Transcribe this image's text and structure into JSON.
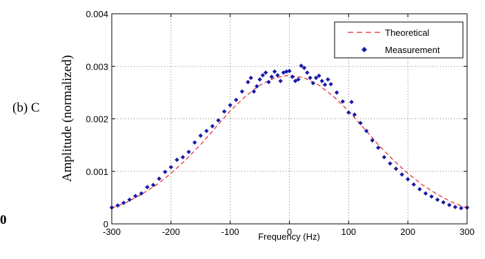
{
  "left_fragments": {
    "caption": "(b) C",
    "bottom": "0"
  },
  "chart_data": {
    "type": "line",
    "xlabel": "Frequency (Hz)",
    "ylabel": "Amplitude (normalized)",
    "xlim": [
      -300,
      300
    ],
    "ylim": [
      0,
      0.004
    ],
    "xticks": [
      -300,
      -200,
      -100,
      0,
      100,
      200,
      300
    ],
    "xtick_labels": [
      "-300",
      "-200",
      "-100",
      "0",
      "100",
      "200",
      "300"
    ],
    "yticks": [
      0,
      0.001,
      0.002,
      0.003,
      0.004
    ],
    "ytick_labels": [
      "0",
      "0.001",
      "0.002",
      "0.003",
      "0.004"
    ],
    "grid": true,
    "legend_position": "top-right",
    "series": [
      {
        "name": "Theoretical",
        "style": "dashed-line",
        "color": "#e0202a",
        "x": [
          -300,
          -275,
          -250,
          -225,
          -200,
          -175,
          -150,
          -125,
          -100,
          -75,
          -50,
          -25,
          0,
          25,
          50,
          75,
          100,
          125,
          150,
          175,
          200,
          225,
          250,
          275,
          300
        ],
        "y": [
          0.0003,
          0.00041,
          0.00056,
          0.00074,
          0.00096,
          0.00122,
          0.00151,
          0.00183,
          0.00215,
          0.00242,
          0.00264,
          0.00278,
          0.00283,
          0.00278,
          0.00264,
          0.00242,
          0.00215,
          0.00183,
          0.00151,
          0.00122,
          0.00096,
          0.00074,
          0.00056,
          0.00041,
          0.0003
        ]
      },
      {
        "name": "Measurement",
        "style": "diamond-markers",
        "color": "#1a1aa8",
        "x": [
          -300,
          -290,
          -280,
          -270,
          -260,
          -250,
          -240,
          -230,
          -220,
          -210,
          -200,
          -190,
          -180,
          -170,
          -160,
          -150,
          -140,
          -130,
          -120,
          -110,
          -100,
          -90,
          -80,
          -70,
          -65,
          -60,
          -55,
          -50,
          -45,
          -40,
          -35,
          -30,
          -25,
          -20,
          -15,
          -10,
          -5,
          0,
          5,
          10,
          15,
          20,
          25,
          30,
          35,
          40,
          45,
          50,
          55,
          60,
          65,
          70,
          80,
          90,
          100,
          105,
          110,
          120,
          130,
          140,
          150,
          160,
          170,
          180,
          190,
          200,
          210,
          220,
          230,
          240,
          250,
          260,
          270,
          280,
          290,
          300
        ],
        "y": [
          0.00031,
          0.00035,
          0.0004,
          0.00046,
          0.00053,
          0.00058,
          0.0007,
          0.00074,
          0.00086,
          0.00099,
          0.00108,
          0.00122,
          0.00127,
          0.00137,
          0.00155,
          0.00168,
          0.00177,
          0.00186,
          0.00197,
          0.00214,
          0.00226,
          0.00236,
          0.00252,
          0.0027,
          0.00278,
          0.00252,
          0.00262,
          0.00275,
          0.00283,
          0.00288,
          0.0027,
          0.0028,
          0.0029,
          0.00283,
          0.00272,
          0.00288,
          0.0029,
          0.00291,
          0.0028,
          0.00272,
          0.00275,
          0.00301,
          0.00297,
          0.00288,
          0.00278,
          0.00268,
          0.00278,
          0.00282,
          0.00272,
          0.00265,
          0.00275,
          0.00266,
          0.0025,
          0.00233,
          0.00212,
          0.00232,
          0.00208,
          0.00192,
          0.00177,
          0.00159,
          0.00145,
          0.00127,
          0.00115,
          0.00105,
          0.00094,
          0.00085,
          0.00075,
          0.00066,
          0.00058,
          0.00052,
          0.00046,
          0.00041,
          0.00036,
          0.00032,
          0.0003,
          0.00031
        ]
      }
    ]
  }
}
